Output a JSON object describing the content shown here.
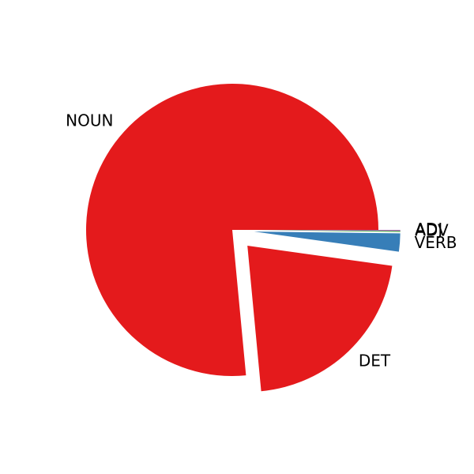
{
  "chart_data": {
    "type": "pie",
    "title": "",
    "slices": [
      {
        "label": "NOUN",
        "value": 76.5,
        "color": "#e41a1c",
        "exploded": false
      },
      {
        "label": "DET",
        "value": 21.3,
        "color": "#e41a1c",
        "exploded": true
      },
      {
        "label": "VERB",
        "value": 2.0,
        "color": "#377eb8",
        "exploded": true
      },
      {
        "label": "ADV",
        "value": 0.1,
        "color": "#4daf4a",
        "exploded": true
      },
      {
        "label": "ADJ",
        "value": 0.1,
        "color": "#984ea3",
        "exploded": true
      }
    ],
    "start_angle_deg": 0,
    "direction": "counterclockwise",
    "legend": "none"
  }
}
